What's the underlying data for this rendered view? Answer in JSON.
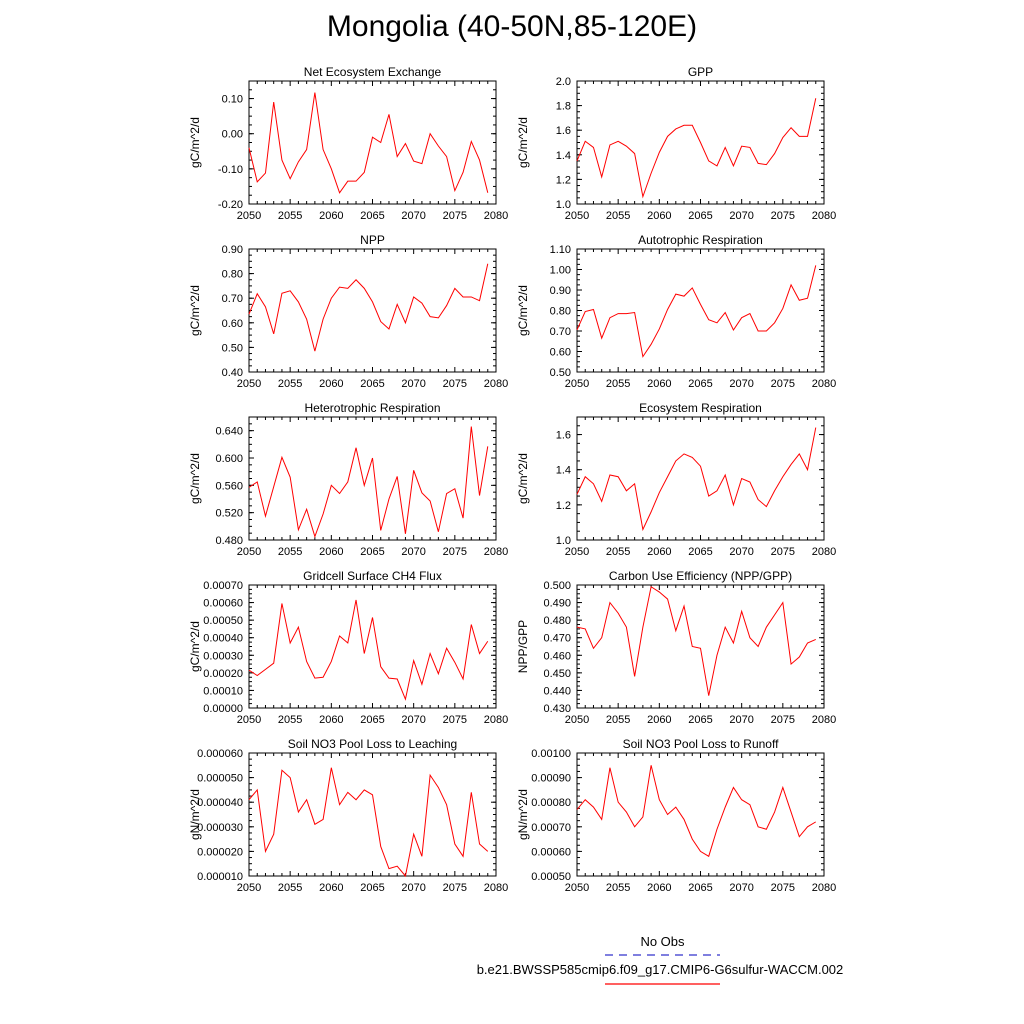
{
  "page": {
    "title": "Mongolia (40-50N,85-120E)"
  },
  "legend": {
    "obs_label": "No Obs",
    "obs_color": "#3333cc",
    "case_label": "b.e21.BWSSP585cmip6.f09_g17.CMIP6-G6sulfur-WACCM.002",
    "case_color": "#ff0000"
  },
  "chart_data": [
    {
      "type": "line",
      "title": "Net Ecosystem Exchange",
      "ylabel": "gC/m^2/d",
      "xlim": [
        2050,
        2080
      ],
      "xticks": [
        "2050",
        "2055",
        "2060",
        "2065",
        "2070",
        "2075",
        "2080"
      ],
      "ylim": [
        -0.2,
        0.15
      ],
      "yticks": [
        "-0.20",
        "-0.10",
        "0.00",
        "0.10"
      ],
      "x": [
        2050,
        2051,
        2052,
        2053,
        2054,
        2055,
        2056,
        2057,
        2058,
        2059,
        2060,
        2061,
        2062,
        2063,
        2064,
        2065,
        2066,
        2067,
        2068,
        2069,
        2070,
        2071,
        2072,
        2073,
        2074,
        2075,
        2076,
        2077,
        2078,
        2079
      ],
      "values": [
        -0.04,
        -0.137,
        -0.112,
        0.09,
        -0.075,
        -0.128,
        -0.08,
        -0.045,
        0.117,
        -0.045,
        -0.1,
        -0.168,
        -0.135,
        -0.135,
        -0.11,
        -0.01,
        -0.025,
        0.055,
        -0.065,
        -0.028,
        -0.078,
        -0.085,
        0.0,
        -0.035,
        -0.065,
        -0.162,
        -0.11,
        -0.022,
        -0.075,
        -0.168
      ]
    },
    {
      "type": "line",
      "title": "GPP",
      "ylabel": "gC/m^2/d",
      "xlim": [
        2050,
        2080
      ],
      "xticks": [
        "2050",
        "2055",
        "2060",
        "2065",
        "2070",
        "2075",
        "2080"
      ],
      "ylim": [
        1.0,
        2.0
      ],
      "yticks": [
        "1.0",
        "1.2",
        "1.4",
        "1.6",
        "1.8",
        "2.0"
      ],
      "x": [
        2050,
        2051,
        2052,
        2053,
        2054,
        2055,
        2056,
        2057,
        2058,
        2059,
        2060,
        2061,
        2062,
        2063,
        2064,
        2065,
        2066,
        2067,
        2068,
        2069,
        2070,
        2071,
        2072,
        2073,
        2074,
        2075,
        2076,
        2077,
        2078,
        2079
      ],
      "values": [
        1.35,
        1.51,
        1.46,
        1.22,
        1.48,
        1.51,
        1.47,
        1.41,
        1.06,
        1.25,
        1.42,
        1.55,
        1.61,
        1.64,
        1.64,
        1.5,
        1.35,
        1.31,
        1.46,
        1.31,
        1.47,
        1.46,
        1.33,
        1.32,
        1.41,
        1.54,
        1.62,
        1.55,
        1.55,
        1.86
      ]
    },
    {
      "type": "line",
      "title": "NPP",
      "ylabel": "gC/m^2/d",
      "xlim": [
        2050,
        2080
      ],
      "xticks": [
        "2050",
        "2055",
        "2060",
        "2065",
        "2070",
        "2075",
        "2080"
      ],
      "ylim": [
        0.4,
        0.9
      ],
      "yticks": [
        "0.40",
        "0.50",
        "0.60",
        "0.70",
        "0.80",
        "0.90"
      ],
      "x": [
        2050,
        2051,
        2052,
        2053,
        2054,
        2055,
        2056,
        2057,
        2058,
        2059,
        2060,
        2061,
        2062,
        2063,
        2064,
        2065,
        2066,
        2067,
        2068,
        2069,
        2070,
        2071,
        2072,
        2073,
        2074,
        2075,
        2076,
        2077,
        2078,
        2079
      ],
      "values": [
        0.635,
        0.718,
        0.665,
        0.555,
        0.72,
        0.73,
        0.685,
        0.615,
        0.485,
        0.615,
        0.7,
        0.745,
        0.74,
        0.775,
        0.74,
        0.685,
        0.605,
        0.575,
        0.675,
        0.6,
        0.705,
        0.68,
        0.625,
        0.62,
        0.67,
        0.74,
        0.705,
        0.705,
        0.69,
        0.84
      ]
    },
    {
      "type": "line",
      "title": "Autotrophic Respiration",
      "ylabel": "gC/m^2/d",
      "xlim": [
        2050,
        2080
      ],
      "xticks": [
        "2050",
        "2055",
        "2060",
        "2065",
        "2070",
        "2075",
        "2080"
      ],
      "ylim": [
        0.5,
        1.1
      ],
      "yticks": [
        "0.50",
        "0.60",
        "0.70",
        "0.80",
        "0.90",
        "1.00",
        "1.10"
      ],
      "x": [
        2050,
        2051,
        2052,
        2053,
        2054,
        2055,
        2056,
        2057,
        2058,
        2059,
        2060,
        2061,
        2062,
        2063,
        2064,
        2065,
        2066,
        2067,
        2068,
        2069,
        2070,
        2071,
        2072,
        2073,
        2074,
        2075,
        2076,
        2077,
        2078,
        2079
      ],
      "values": [
        0.705,
        0.795,
        0.805,
        0.665,
        0.765,
        0.785,
        0.785,
        0.79,
        0.575,
        0.635,
        0.71,
        0.805,
        0.88,
        0.87,
        0.91,
        0.83,
        0.755,
        0.74,
        0.79,
        0.705,
        0.765,
        0.785,
        0.7,
        0.7,
        0.74,
        0.81,
        0.925,
        0.85,
        0.86,
        1.02
      ]
    },
    {
      "type": "line",
      "title": "Heterotrophic Respiration",
      "ylabel": "gC/m^2/d",
      "xlim": [
        2050,
        2080
      ],
      "xticks": [
        "2050",
        "2055",
        "2060",
        "2065",
        "2070",
        "2075",
        "2080"
      ],
      "ylim": [
        0.48,
        0.66
      ],
      "yticks": [
        "0.480",
        "0.520",
        "0.560",
        "0.600",
        "0.640"
      ],
      "x": [
        2050,
        2051,
        2052,
        2053,
        2054,
        2055,
        2056,
        2057,
        2058,
        2059,
        2060,
        2061,
        2062,
        2063,
        2064,
        2065,
        2066,
        2067,
        2068,
        2069,
        2070,
        2071,
        2072,
        2073,
        2074,
        2075,
        2076,
        2077,
        2078,
        2079
      ],
      "values": [
        0.557,
        0.565,
        0.515,
        0.558,
        0.601,
        0.572,
        0.495,
        0.525,
        0.485,
        0.518,
        0.56,
        0.548,
        0.565,
        0.615,
        0.56,
        0.6,
        0.494,
        0.54,
        0.573,
        0.489,
        0.582,
        0.549,
        0.537,
        0.492,
        0.548,
        0.555,
        0.512,
        0.646,
        0.545,
        0.617
      ]
    },
    {
      "type": "line",
      "title": "Ecosystem Respiration",
      "ylabel": "gC/m^2/d",
      "xlim": [
        2050,
        2080
      ],
      "xticks": [
        "2050",
        "2055",
        "2060",
        "2065",
        "2070",
        "2075",
        "2080"
      ],
      "ylim": [
        1.0,
        1.7
      ],
      "yticks": [
        "1.0",
        "1.2",
        "1.4",
        "1.6"
      ],
      "x": [
        2050,
        2051,
        2052,
        2053,
        2054,
        2055,
        2056,
        2057,
        2058,
        2059,
        2060,
        2061,
        2062,
        2063,
        2064,
        2065,
        2066,
        2067,
        2068,
        2069,
        2070,
        2071,
        2072,
        2073,
        2074,
        2075,
        2076,
        2077,
        2078,
        2079
      ],
      "values": [
        1.26,
        1.36,
        1.32,
        1.22,
        1.37,
        1.36,
        1.28,
        1.32,
        1.06,
        1.16,
        1.27,
        1.36,
        1.45,
        1.49,
        1.47,
        1.42,
        1.25,
        1.28,
        1.37,
        1.2,
        1.35,
        1.33,
        1.23,
        1.19,
        1.28,
        1.36,
        1.43,
        1.49,
        1.4,
        1.64
      ]
    },
    {
      "type": "line",
      "title": "Gridcell Surface CH4 Flux",
      "ylabel": "gC/m^2/d",
      "xlim": [
        2050,
        2080
      ],
      "xticks": [
        "2050",
        "2055",
        "2060",
        "2065",
        "2070",
        "2075",
        "2080"
      ],
      "ylim": [
        0.0,
        0.0007
      ],
      "yticks": [
        "0.00000",
        "0.00010",
        "0.00020",
        "0.00030",
        "0.00040",
        "0.00050",
        "0.00060",
        "0.00070"
      ],
      "x": [
        2050,
        2051,
        2052,
        2053,
        2054,
        2055,
        2056,
        2057,
        2058,
        2059,
        2060,
        2061,
        2062,
        2063,
        2064,
        2065,
        2066,
        2067,
        2068,
        2069,
        2070,
        2071,
        2072,
        2073,
        2074,
        2075,
        2076,
        2077,
        2078,
        2079
      ],
      "values": [
        0.000215,
        0.000185,
        0.00022,
        0.000255,
        0.000595,
        0.00037,
        0.00046,
        0.000265,
        0.00017,
        0.000175,
        0.000265,
        0.00041,
        0.00037,
        0.000615,
        0.00031,
        0.000515,
        0.000235,
        0.00017,
        0.000165,
        5e-05,
        0.00027,
        0.000135,
        0.00031,
        0.000195,
        0.00034,
        0.00026,
        0.000165,
        0.000475,
        0.00031,
        0.00038
      ]
    },
    {
      "type": "line",
      "title": "Carbon Use Efficiency (NPP/GPP)",
      "ylabel": "NPP/GPP",
      "xlim": [
        2050,
        2080
      ],
      "xticks": [
        "2050",
        "2055",
        "2060",
        "2065",
        "2070",
        "2075",
        "2080"
      ],
      "ylim": [
        0.43,
        0.5
      ],
      "yticks": [
        "0.430",
        "0.440",
        "0.450",
        "0.460",
        "0.470",
        "0.480",
        "0.490",
        "0.500"
      ],
      "x": [
        2050,
        2051,
        2052,
        2053,
        2054,
        2055,
        2056,
        2057,
        2058,
        2059,
        2060,
        2061,
        2062,
        2063,
        2064,
        2065,
        2066,
        2067,
        2068,
        2069,
        2070,
        2071,
        2072,
        2073,
        2074,
        2075,
        2076,
        2077,
        2078,
        2079
      ],
      "values": [
        0.476,
        0.475,
        0.464,
        0.47,
        0.49,
        0.484,
        0.476,
        0.448,
        0.476,
        0.499,
        0.496,
        0.492,
        0.474,
        0.488,
        0.465,
        0.464,
        0.437,
        0.46,
        0.476,
        0.467,
        0.485,
        0.47,
        0.465,
        0.476,
        0.483,
        0.49,
        0.455,
        0.459,
        0.467,
        0.469
      ]
    },
    {
      "type": "line",
      "title": "Soil NO3 Pool Loss to Leaching",
      "ylabel": "gN/m^2/d",
      "xlim": [
        2050,
        2080
      ],
      "xticks": [
        "2050",
        "2055",
        "2060",
        "2065",
        "2070",
        "2075",
        "2080"
      ],
      "ylim": [
        1e-05,
        6e-05
      ],
      "yticks": [
        "0.000010",
        "0.000020",
        "0.000030",
        "0.000040",
        "0.000050",
        "0.000060"
      ],
      "x": [
        2050,
        2051,
        2052,
        2053,
        2054,
        2055,
        2056,
        2057,
        2058,
        2059,
        2060,
        2061,
        2062,
        2063,
        2064,
        2065,
        2066,
        2067,
        2068,
        2069,
        2070,
        2071,
        2072,
        2073,
        2074,
        2075,
        2076,
        2077,
        2078,
        2079
      ],
      "values": [
        4.1e-05,
        4.5e-05,
        2e-05,
        2.7e-05,
        5.3e-05,
        5e-05,
        3.6e-05,
        4.1e-05,
        3.1e-05,
        3.3e-05,
        5.4e-05,
        3.9e-05,
        4.4e-05,
        4.1e-05,
        4.5e-05,
        4.3e-05,
        2.2e-05,
        1.3e-05,
        1.4e-05,
        1e-05,
        2.7e-05,
        1.8e-05,
        5.1e-05,
        4.6e-05,
        3.9e-05,
        2.3e-05,
        1.8e-05,
        4.4e-05,
        2.3e-05,
        2e-05
      ]
    },
    {
      "type": "line",
      "title": "Soil NO3 Pool Loss to Runoff",
      "ylabel": "gN/m^2/d",
      "xlim": [
        2050,
        2080
      ],
      "xticks": [
        "2050",
        "2055",
        "2060",
        "2065",
        "2070",
        "2075",
        "2080"
      ],
      "ylim": [
        0.0005,
        0.001
      ],
      "yticks": [
        "0.00050",
        "0.00060",
        "0.00070",
        "0.00080",
        "0.00090",
        "0.00100"
      ],
      "x": [
        2050,
        2051,
        2052,
        2053,
        2054,
        2055,
        2056,
        2057,
        2058,
        2059,
        2060,
        2061,
        2062,
        2063,
        2064,
        2065,
        2066,
        2067,
        2068,
        2069,
        2070,
        2071,
        2072,
        2073,
        2074,
        2075,
        2076,
        2077,
        2078,
        2079
      ],
      "values": [
        0.00077,
        0.00081,
        0.00078,
        0.00073,
        0.00094,
        0.0008,
        0.00076,
        0.0007,
        0.00074,
        0.00095,
        0.00081,
        0.00075,
        0.00078,
        0.00073,
        0.00065,
        0.0006,
        0.00058,
        0.00069,
        0.00078,
        0.00086,
        0.00081,
        0.00079,
        0.0007,
        0.00069,
        0.00076,
        0.00086,
        0.00076,
        0.00066,
        0.0007,
        0.00072
      ]
    }
  ]
}
